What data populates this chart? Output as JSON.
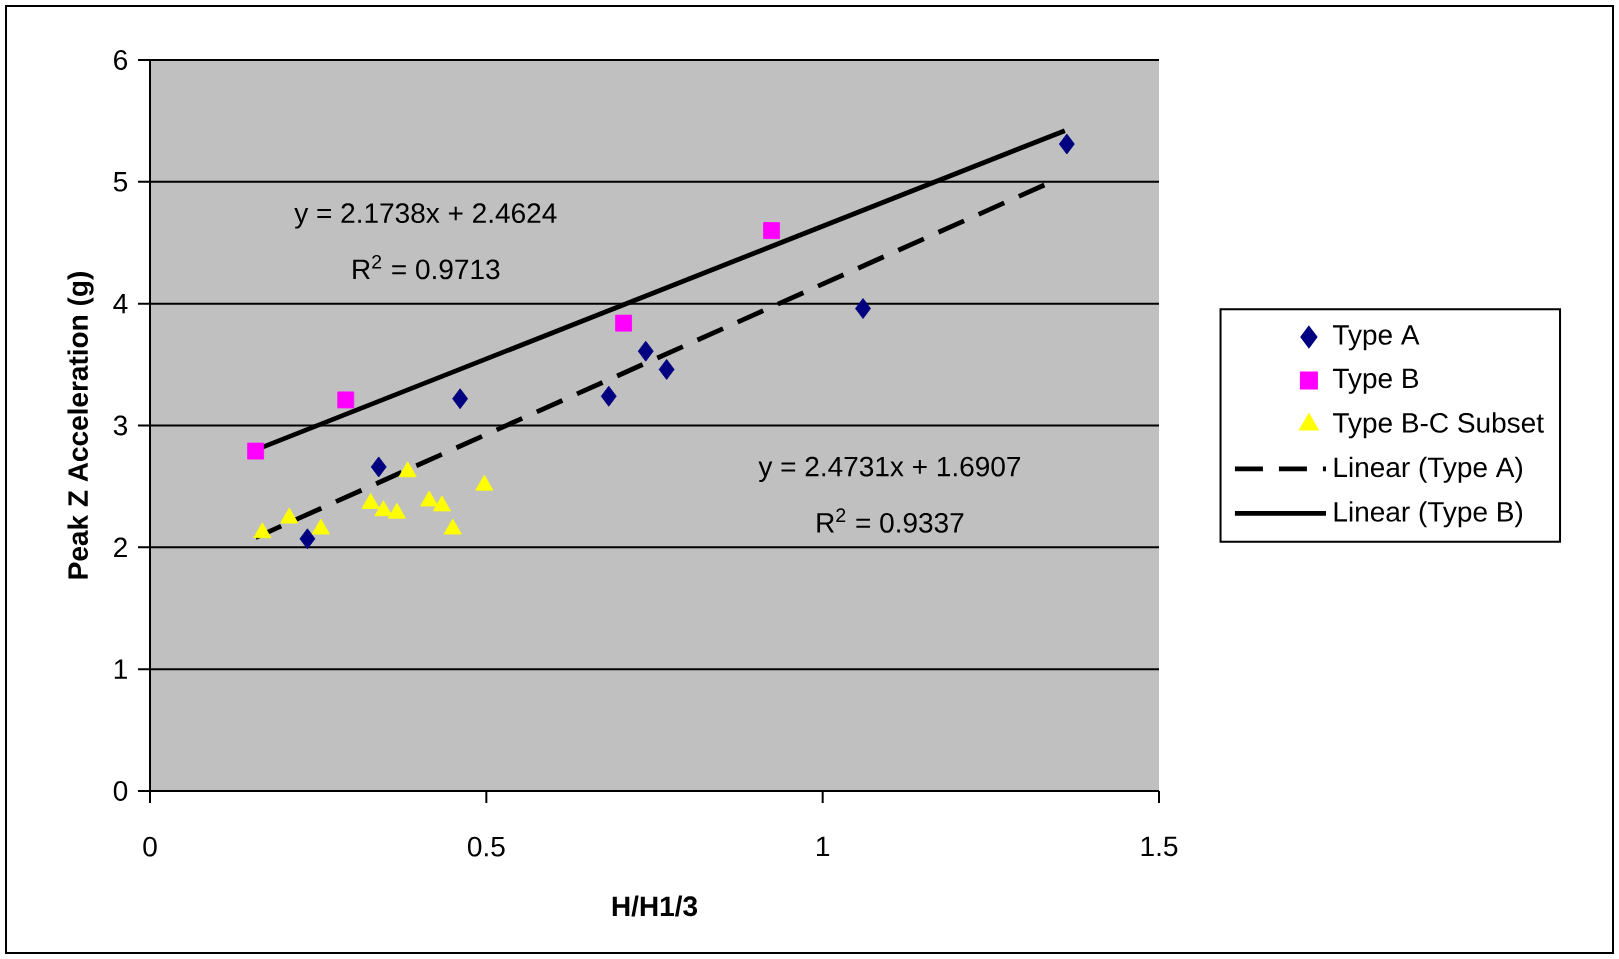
{
  "chart_data": {
    "type": "scatter",
    "xlabel": "H/H1/3",
    "ylabel": "Peak Z Acceleration (g)",
    "xlim": [
      0,
      1.5
    ],
    "ylim": [
      0,
      6
    ],
    "xticks": [
      0,
      0.5,
      1,
      1.5
    ],
    "yticks": [
      0,
      1,
      2,
      3,
      4,
      5,
      6
    ],
    "grid": "y",
    "legend": "right",
    "series": [
      {
        "name": "Type A",
        "color": "#000080",
        "marker": "diamond",
        "x": [
          0.234,
          0.34,
          0.461,
          0.682,
          0.737,
          0.768,
          1.06,
          1.363
        ],
        "values": [
          2.07,
          2.66,
          3.22,
          3.24,
          3.61,
          3.46,
          3.96,
          5.31
        ]
      },
      {
        "name": "Type B",
        "color": "#ff00ff",
        "marker": "square",
        "x": [
          0.157,
          0.291,
          0.704,
          0.924
        ],
        "values": [
          2.79,
          3.21,
          3.84,
          4.6
        ]
      },
      {
        "name": "Type B-C Subset",
        "color": "#ffff00",
        "marker": "triangle",
        "x": [
          0.167,
          0.207,
          0.254,
          0.328,
          0.347,
          0.367,
          0.383,
          0.415,
          0.434,
          0.45,
          0.497
        ],
        "values": [
          2.12,
          2.24,
          2.15,
          2.36,
          2.3,
          2.28,
          2.62,
          2.38,
          2.34,
          2.15,
          2.51
        ]
      },
      {
        "name": "Linear (Type A)",
        "type": "line",
        "color": "#000000",
        "line_style": "dashed",
        "x": [
          0.157,
          1.336
        ],
        "values": [
          2.08,
          4.99
        ]
      },
      {
        "name": "Linear (Type B)",
        "type": "line",
        "color": "#000000",
        "line_style": "solid",
        "x": [
          0.157,
          1.36
        ],
        "values": [
          2.8,
          5.42
        ]
      }
    ],
    "annotations": [
      "y = 2.1738x + 2.4624",
      "R$^{2}$ = 0.9713",
      "y = 2.4731x + 1.6907",
      "R$^{2}$ = 0.9337"
    ]
  }
}
